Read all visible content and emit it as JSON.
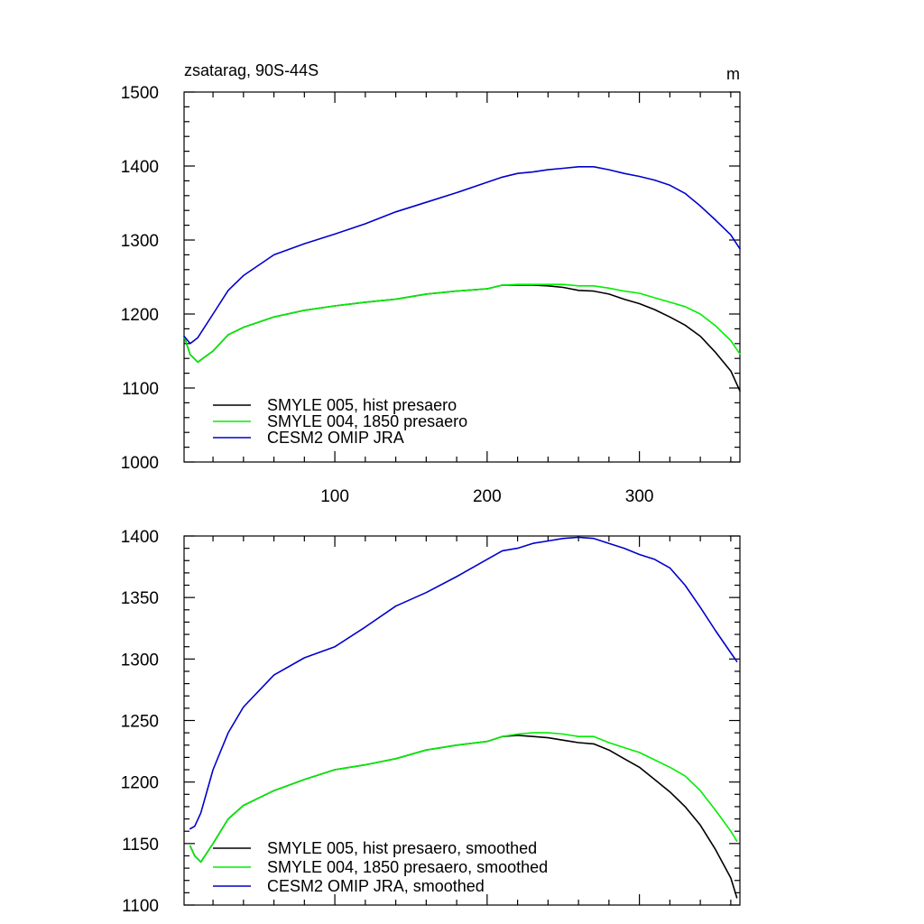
{
  "figure": {
    "title_left": "zsatarag, 90S-44S",
    "title_right": "m"
  },
  "colors": {
    "hist": "#000000",
    "pre1850": "#00ee00",
    "omip": "#0000cc"
  },
  "chart_data": [
    {
      "type": "line",
      "title": "zsatarag, 90S-44S",
      "units": "m",
      "xlim": [
        1,
        366
      ],
      "ylim": [
        1000,
        1500
      ],
      "x_ticks": [
        100,
        200,
        300
      ],
      "x_tick_labels": [
        "100",
        "200",
        "300"
      ],
      "y_ticks": [
        1000,
        1100,
        1200,
        1300,
        1400,
        1500
      ],
      "y_tick_labels": [
        "1000",
        "1100",
        "1200",
        "1300",
        "1400",
        "1500"
      ],
      "legend": "bottom-left",
      "series": [
        {
          "name": "SMYLE 005, hist presaero",
          "color": "#000000",
          "x": [
            1,
            5,
            10,
            20,
            30,
            40,
            60,
            80,
            100,
            120,
            140,
            160,
            180,
            200,
            210,
            220,
            230,
            240,
            250,
            260,
            270,
            280,
            290,
            300,
            310,
            320,
            330,
            340,
            350,
            360,
            366
          ],
          "values": [
            1170,
            1145,
            1135,
            1150,
            1172,
            1182,
            1196,
            1205,
            1211,
            1216,
            1220,
            1227,
            1231,
            1234,
            1239,
            1239,
            1239,
            1238,
            1236,
            1232,
            1231,
            1227,
            1220,
            1214,
            1206,
            1196,
            1185,
            1170,
            1148,
            1123,
            1096
          ]
        },
        {
          "name": "SMYLE 004, 1850 presaero",
          "color": "#00ee00",
          "x": [
            1,
            5,
            10,
            20,
            30,
            40,
            60,
            80,
            100,
            120,
            140,
            160,
            180,
            200,
            210,
            220,
            230,
            240,
            250,
            260,
            270,
            280,
            290,
            300,
            310,
            320,
            330,
            340,
            350,
            360,
            366
          ],
          "values": [
            1170,
            1145,
            1135,
            1150,
            1172,
            1182,
            1196,
            1205,
            1211,
            1216,
            1220,
            1227,
            1231,
            1234,
            1239,
            1240,
            1240,
            1240,
            1240,
            1238,
            1238,
            1235,
            1231,
            1228,
            1222,
            1216,
            1210,
            1200,
            1184,
            1164,
            1146
          ]
        },
        {
          "name": "CESM2 OMIP JRA",
          "color": "#0000cc",
          "x": [
            1,
            5,
            10,
            20,
            30,
            40,
            60,
            80,
            100,
            120,
            140,
            160,
            180,
            200,
            210,
            220,
            230,
            240,
            250,
            260,
            270,
            280,
            290,
            300,
            310,
            320,
            330,
            340,
            350,
            360,
            366
          ],
          "values": [
            1170,
            1160,
            1168,
            1200,
            1232,
            1252,
            1280,
            1295,
            1308,
            1322,
            1338,
            1351,
            1364,
            1378,
            1385,
            1390,
            1392,
            1395,
            1397,
            1399,
            1399,
            1395,
            1390,
            1386,
            1381,
            1374,
            1363,
            1346,
            1327,
            1307,
            1288
          ]
        }
      ]
    },
    {
      "type": "line",
      "xlim": [
        1,
        366
      ],
      "ylim": [
        1100,
        1400
      ],
      "x_ticks": [
        100,
        200,
        300
      ],
      "y_ticks": [
        1100,
        1150,
        1200,
        1250,
        1300,
        1350,
        1400
      ],
      "y_tick_labels": [
        "1100",
        "1150",
        "1200",
        "1250",
        "1300",
        "1350",
        "1400"
      ],
      "legend": "bottom-left",
      "series": [
        {
          "name": "SMYLE 005, hist presaero, smoothed",
          "color": "#000000",
          "x": [
            5,
            8,
            12,
            20,
            30,
            40,
            60,
            80,
            100,
            120,
            140,
            160,
            180,
            200,
            210,
            220,
            230,
            240,
            250,
            260,
            270,
            280,
            290,
            300,
            310,
            320,
            330,
            340,
            350,
            360,
            364
          ],
          "values": [
            1148,
            1140,
            1135,
            1150,
            1170,
            1181,
            1193,
            1202,
            1210,
            1214,
            1219,
            1226,
            1230,
            1233,
            1237,
            1238,
            1237,
            1236,
            1234,
            1232,
            1231,
            1226,
            1219,
            1212,
            1202,
            1192,
            1180,
            1165,
            1145,
            1122,
            1106
          ]
        },
        {
          "name": "SMYLE 004, 1850 presaero, smoothed",
          "color": "#00ee00",
          "x": [
            5,
            8,
            12,
            20,
            30,
            40,
            60,
            80,
            100,
            120,
            140,
            160,
            180,
            200,
            210,
            220,
            230,
            240,
            250,
            260,
            270,
            280,
            290,
            300,
            310,
            320,
            330,
            340,
            350,
            360,
            364
          ],
          "values": [
            1148,
            1140,
            1135,
            1150,
            1170,
            1181,
            1193,
            1202,
            1210,
            1214,
            1219,
            1226,
            1230,
            1233,
            1237,
            1239,
            1240,
            1240,
            1239,
            1237,
            1237,
            1232,
            1228,
            1224,
            1218,
            1212,
            1205,
            1193,
            1177,
            1160,
            1152
          ]
        },
        {
          "name": "CESM2 OMIP JRA, smoothed",
          "color": "#0000cc",
          "x": [
            5,
            8,
            12,
            20,
            30,
            40,
            60,
            80,
            100,
            120,
            140,
            160,
            180,
            200,
            210,
            220,
            230,
            240,
            250,
            260,
            270,
            280,
            290,
            300,
            310,
            320,
            330,
            340,
            350,
            360,
            364
          ],
          "values": [
            1162,
            1164,
            1175,
            1210,
            1240,
            1261,
            1287,
            1301,
            1310,
            1326,
            1343,
            1354,
            1367,
            1381,
            1388,
            1390,
            1394,
            1396,
            1398,
            1399,
            1398,
            1394,
            1390,
            1385,
            1381,
            1374,
            1360,
            1342,
            1323,
            1305,
            1298
          ]
        }
      ]
    }
  ]
}
